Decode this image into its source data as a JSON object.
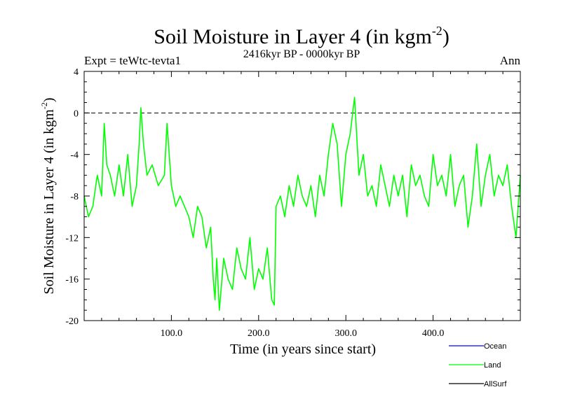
{
  "chart_data": {
    "type": "line",
    "title": "Soil Moisture in Layer 4 (in kgm",
    "title_sup": "-2",
    "title_close": ")",
    "subtitle": "2416kyr BP - 0000kyr BP",
    "left_label": "Expt = teWtc-tevta1",
    "right_label": "Ann",
    "xlabel": "Time (in years since start)",
    "ylabel": "Soil Moisture in Layer 4 (in kgm",
    "ylabel_sup": "-2",
    "ylabel_close": ")",
    "xlim": [
      0,
      500
    ],
    "ylim": [
      -20,
      4
    ],
    "xticks": [
      100,
      200,
      300,
      400
    ],
    "xtick_labels": [
      "100.0",
      "200.0",
      "300.0",
      "400.0"
    ],
    "yticks": [
      4,
      0,
      -4,
      -8,
      -12,
      -16,
      -20
    ],
    "ytick_labels": [
      "4",
      "0",
      "-4",
      "-8",
      "-12",
      "-16",
      "-20"
    ],
    "reference_line": 0,
    "legend": [
      {
        "name": "Ocean",
        "color": "#0000ff"
      },
      {
        "name": "Land",
        "color": "#00ff00"
      },
      {
        "name": "AllSurf",
        "color": "#000000"
      }
    ],
    "series": [
      {
        "name": "Land",
        "color": "#00ff00",
        "x": [
          0,
          5,
          10,
          15,
          20,
          23,
          26,
          30,
          35,
          40,
          45,
          50,
          55,
          60,
          63,
          65,
          68,
          72,
          78,
          85,
          92,
          95,
          100,
          105,
          110,
          115,
          120,
          125,
          130,
          135,
          140,
          145,
          148,
          150,
          152,
          155,
          160,
          165,
          170,
          175,
          180,
          185,
          190,
          195,
          200,
          205,
          210,
          215,
          218,
          220,
          225,
          230,
          235,
          240,
          245,
          250,
          255,
          260,
          265,
          270,
          275,
          280,
          285,
          290,
          295,
          300,
          305,
          310,
          315,
          320,
          325,
          330,
          335,
          340,
          345,
          350,
          355,
          360,
          365,
          370,
          375,
          380,
          385,
          390,
          395,
          400,
          405,
          410,
          415,
          420,
          425,
          430,
          435,
          440,
          445,
          450,
          455,
          460,
          465,
          470,
          475,
          480,
          485,
          490,
          495,
          500
        ],
        "values": [
          -8,
          -10,
          -9,
          -6,
          -8,
          -1,
          -5,
          -6,
          -8,
          -5,
          -8,
          -4,
          -9,
          -7,
          -3,
          0.5,
          -3,
          -6,
          -5,
          -7,
          -6,
          -1,
          -7,
          -9,
          -8,
          -9,
          -10,
          -12,
          -9,
          -10,
          -13,
          -11,
          -16,
          -18,
          -14,
          -19,
          -14,
          -16,
          -17,
          -13,
          -15,
          -16,
          -12,
          -17,
          -15,
          -16,
          -13,
          -18,
          -18.5,
          -9,
          -8,
          -10,
          -7,
          -9,
          -6,
          -8,
          -9,
          -7,
          -10,
          -6,
          -8,
          -4,
          -1,
          -3,
          -9,
          -4,
          -2,
          1.5,
          -6,
          -4,
          -8,
          -7,
          -9,
          -5,
          -7,
          -9,
          -6,
          -8,
          -6,
          -10,
          -5,
          -7,
          -6,
          -8,
          -9,
          -4,
          -7,
          -6,
          -8,
          -4,
          -9,
          -7,
          -6,
          -11,
          -8,
          -3,
          -9,
          -6,
          -4,
          -8,
          -6,
          -7,
          -5,
          -9,
          -12,
          -6
        ]
      }
    ]
  }
}
